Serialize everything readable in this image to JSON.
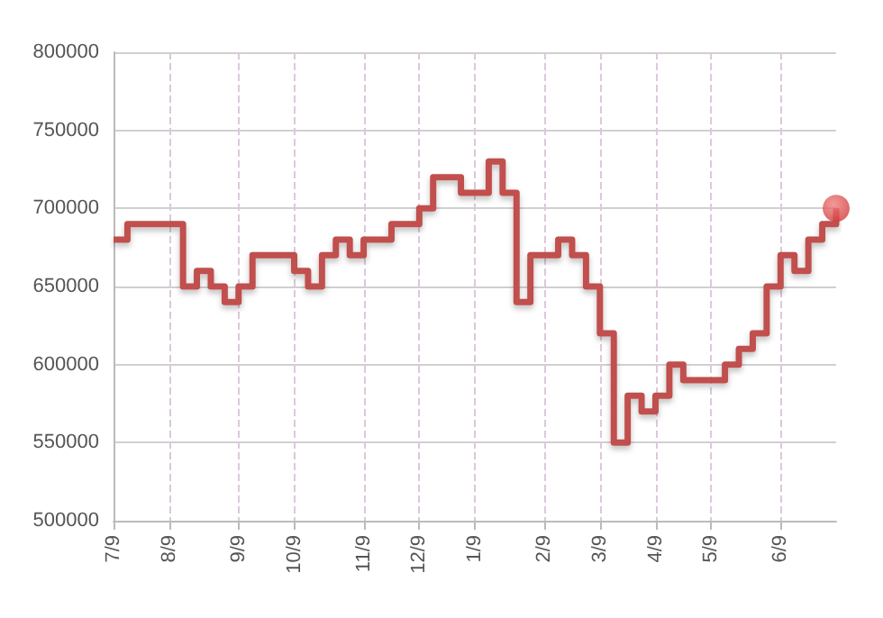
{
  "chart_data": {
    "type": "step",
    "categories": [
      "7/9",
      null,
      null,
      null,
      "8/9",
      null,
      null,
      null,
      null,
      "9/9",
      null,
      null,
      null,
      "10/9",
      null,
      null,
      null,
      null,
      "11/9",
      null,
      null,
      null,
      "12/9",
      null,
      null,
      null,
      "1/9",
      null,
      null,
      null,
      null,
      "2/9",
      null,
      null,
      null,
      "3/9",
      null,
      null,
      null,
      "4/9",
      null,
      null,
      null,
      "5/9",
      null,
      null,
      null,
      null,
      "6/9",
      null,
      null,
      null,
      null
    ],
    "series": [
      {
        "color": "#c0504d",
        "values": [
          680000,
          690000,
          690000,
          690000,
          690000,
          650000,
          660000,
          650000,
          640000,
          650000,
          670000,
          670000,
          670000,
          660000,
          650000,
          670000,
          680000,
          670000,
          680000,
          680000,
          690000,
          690000,
          700000,
          720000,
          720000,
          710000,
          710000,
          730000,
          710000,
          640000,
          670000,
          670000,
          680000,
          670000,
          650000,
          620000,
          550000,
          580000,
          570000,
          580000,
          600000,
          590000,
          590000,
          590000,
          600000,
          610000,
          620000,
          650000,
          670000,
          660000,
          680000,
          690000,
          700000
        ]
      },
      {
        "type": "scatter",
        "color": "#d03a38",
        "values": [
          null,
          null,
          null,
          null,
          null,
          null,
          null,
          null,
          null,
          null,
          null,
          null,
          null,
          null,
          null,
          null,
          null,
          null,
          null,
          null,
          null,
          null,
          null,
          null,
          null,
          null,
          null,
          null,
          null,
          null,
          null,
          null,
          null,
          null,
          null,
          null,
          null,
          null,
          null,
          null,
          null,
          null,
          null,
          null,
          null,
          null,
          null,
          null,
          null,
          null,
          null,
          null,
          700000
        ]
      }
    ],
    "ylim": [
      500000,
      800000
    ],
    "yticks": [
      500000,
      550000,
      600000,
      650000,
      700000,
      750000,
      800000
    ],
    "grid": true
  }
}
